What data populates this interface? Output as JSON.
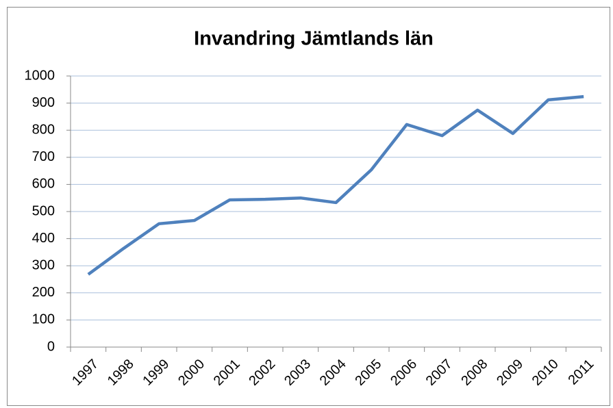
{
  "chart_data": {
    "type": "line",
    "title": "Invandring Jämtlands län",
    "categories": [
      "1997",
      "1998",
      "1999",
      "2000",
      "2001",
      "2002",
      "2003",
      "2004",
      "2005",
      "2006",
      "2007",
      "2008",
      "2009",
      "2010",
      "2011"
    ],
    "series": [
      {
        "name": "Invandring",
        "color": "#4f81bd",
        "values": [
          268,
          364,
          455,
          467,
          543,
          545,
          550,
          533,
          654,
          821,
          780,
          874,
          788,
          912,
          924
        ]
      }
    ],
    "ylim": [
      0,
      1000
    ],
    "yticks": [
      0,
      100,
      200,
      300,
      400,
      500,
      600,
      700,
      800,
      900,
      1000
    ],
    "grid": true
  }
}
